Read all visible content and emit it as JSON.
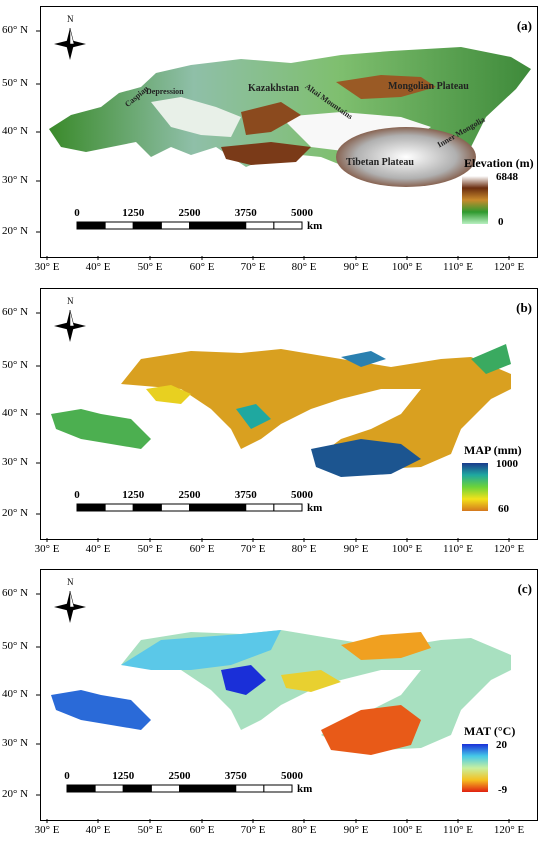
{
  "panels": [
    {
      "label": "(a)",
      "legend": {
        "title": "Elevation (m)",
        "max": "6848",
        "min": "0",
        "colors": [
          "#ffffff",
          "#6b2d0f",
          "#c98a2c",
          "#2f9a2f",
          "#b8f0c0"
        ]
      },
      "regions": [
        "Caspian",
        "Depression",
        "Kazakhstan",
        "Altai Mountains",
        "Mongolian Plateau",
        "Inner Mongolia",
        "Tibetan Plateau"
      ]
    },
    {
      "label": "(b)",
      "legend": {
        "title": "MAP (mm)",
        "max": "1000",
        "min": "60",
        "colors": [
          "#1a3a8c",
          "#1fa8a0",
          "#6cd33a",
          "#f3e21a",
          "#d4781e"
        ]
      }
    },
    {
      "label": "(c)",
      "legend": {
        "title": "MAT (°C)",
        "max": "20",
        "min": "-9",
        "colors": [
          "#1a2fd8",
          "#45c8e8",
          "#c8f0a0",
          "#f5c020",
          "#e02010"
        ]
      }
    }
  ],
  "lat_labels": [
    "60° N",
    "50° N",
    "40° N",
    "30° N",
    "20° N"
  ],
  "lon_labels": [
    "30° E",
    "40° E",
    "50° E",
    "60° E",
    "70° E",
    "80° E",
    "90° E",
    "100° E",
    "110° E",
    "120° E"
  ],
  "scale_bar": {
    "labels": [
      "0",
      "1250",
      "2500",
      "3750",
      "5000"
    ],
    "unit": "km"
  },
  "north_label": "N"
}
